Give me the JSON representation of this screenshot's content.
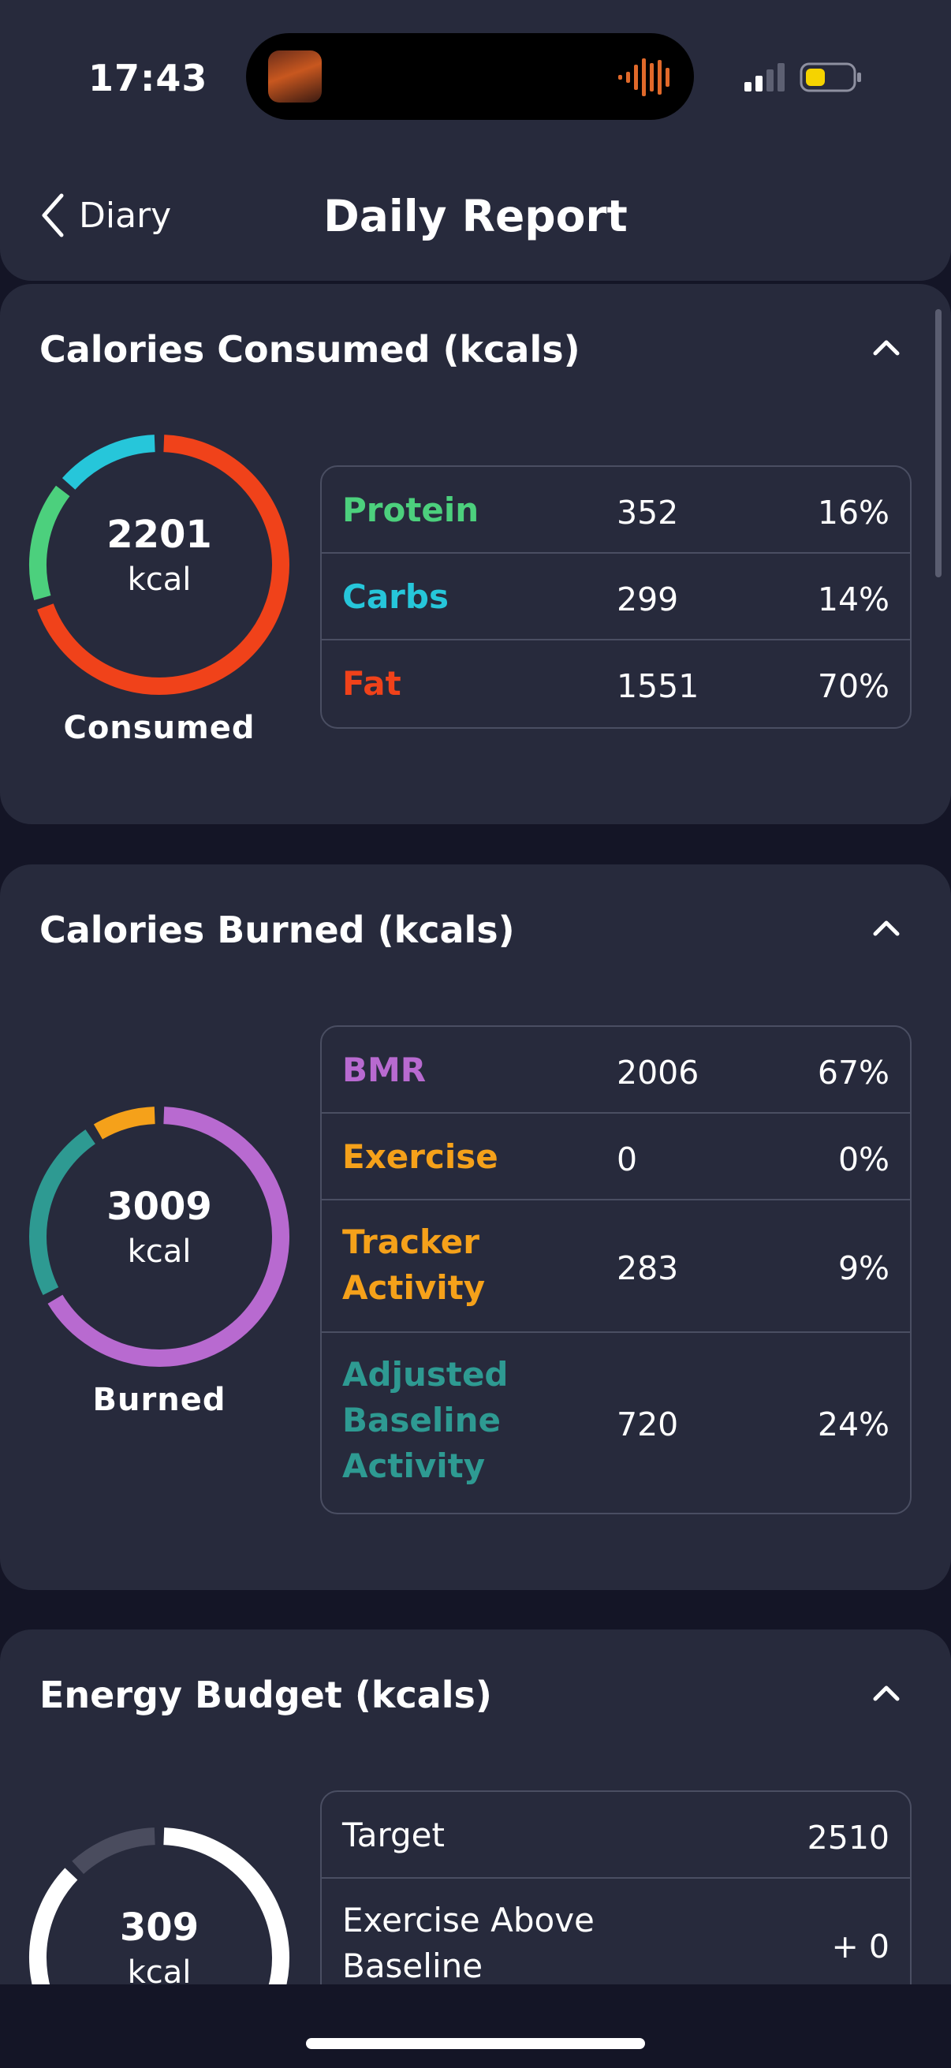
{
  "status_bar": {
    "time": "17:43",
    "accent_battery": "#f5d300"
  },
  "header": {
    "back_label": "Diary",
    "title": "Daily Report"
  },
  "consumed": {
    "title": "Calories Consumed (kcals)",
    "ring_value": "2201",
    "ring_unit": "kcal",
    "caption": "Consumed",
    "rows": [
      {
        "label": "Protein",
        "value": "352",
        "pct": "16%",
        "color": "#4cd07d"
      },
      {
        "label": "Carbs",
        "value": "299",
        "pct": "14%",
        "color": "#26c6da"
      },
      {
        "label": "Fat",
        "value": "1551",
        "pct": "70%",
        "color": "#f0421a"
      }
    ]
  },
  "burned": {
    "title": "Calories Burned (kcals)",
    "ring_value": "3009",
    "ring_unit": "kcal",
    "caption": "Burned",
    "rows": [
      {
        "label": "BMR",
        "value": "2006",
        "pct": "67%",
        "color": "#b86ad0"
      },
      {
        "label": "Exercise",
        "value": "0",
        "pct": "0%",
        "color": "#f5a11a"
      },
      {
        "label": "Tracker Activity",
        "value": "283",
        "pct": "9%",
        "color": "#f5a11a"
      },
      {
        "label": "Adjusted Baseline Activity",
        "value": "720",
        "pct": "24%",
        "color": "#2e9a92"
      }
    ]
  },
  "budget": {
    "title": "Energy Budget (kcals)",
    "ring_value": "309",
    "ring_unit": "kcal",
    "rows": [
      {
        "label": "Target",
        "value": "2510"
      },
      {
        "label": "Exercise Above Baseline",
        "value": "+ 0"
      }
    ]
  },
  "icons": {
    "back": "chevron-left-icon",
    "collapse": "chevron-up-icon"
  }
}
